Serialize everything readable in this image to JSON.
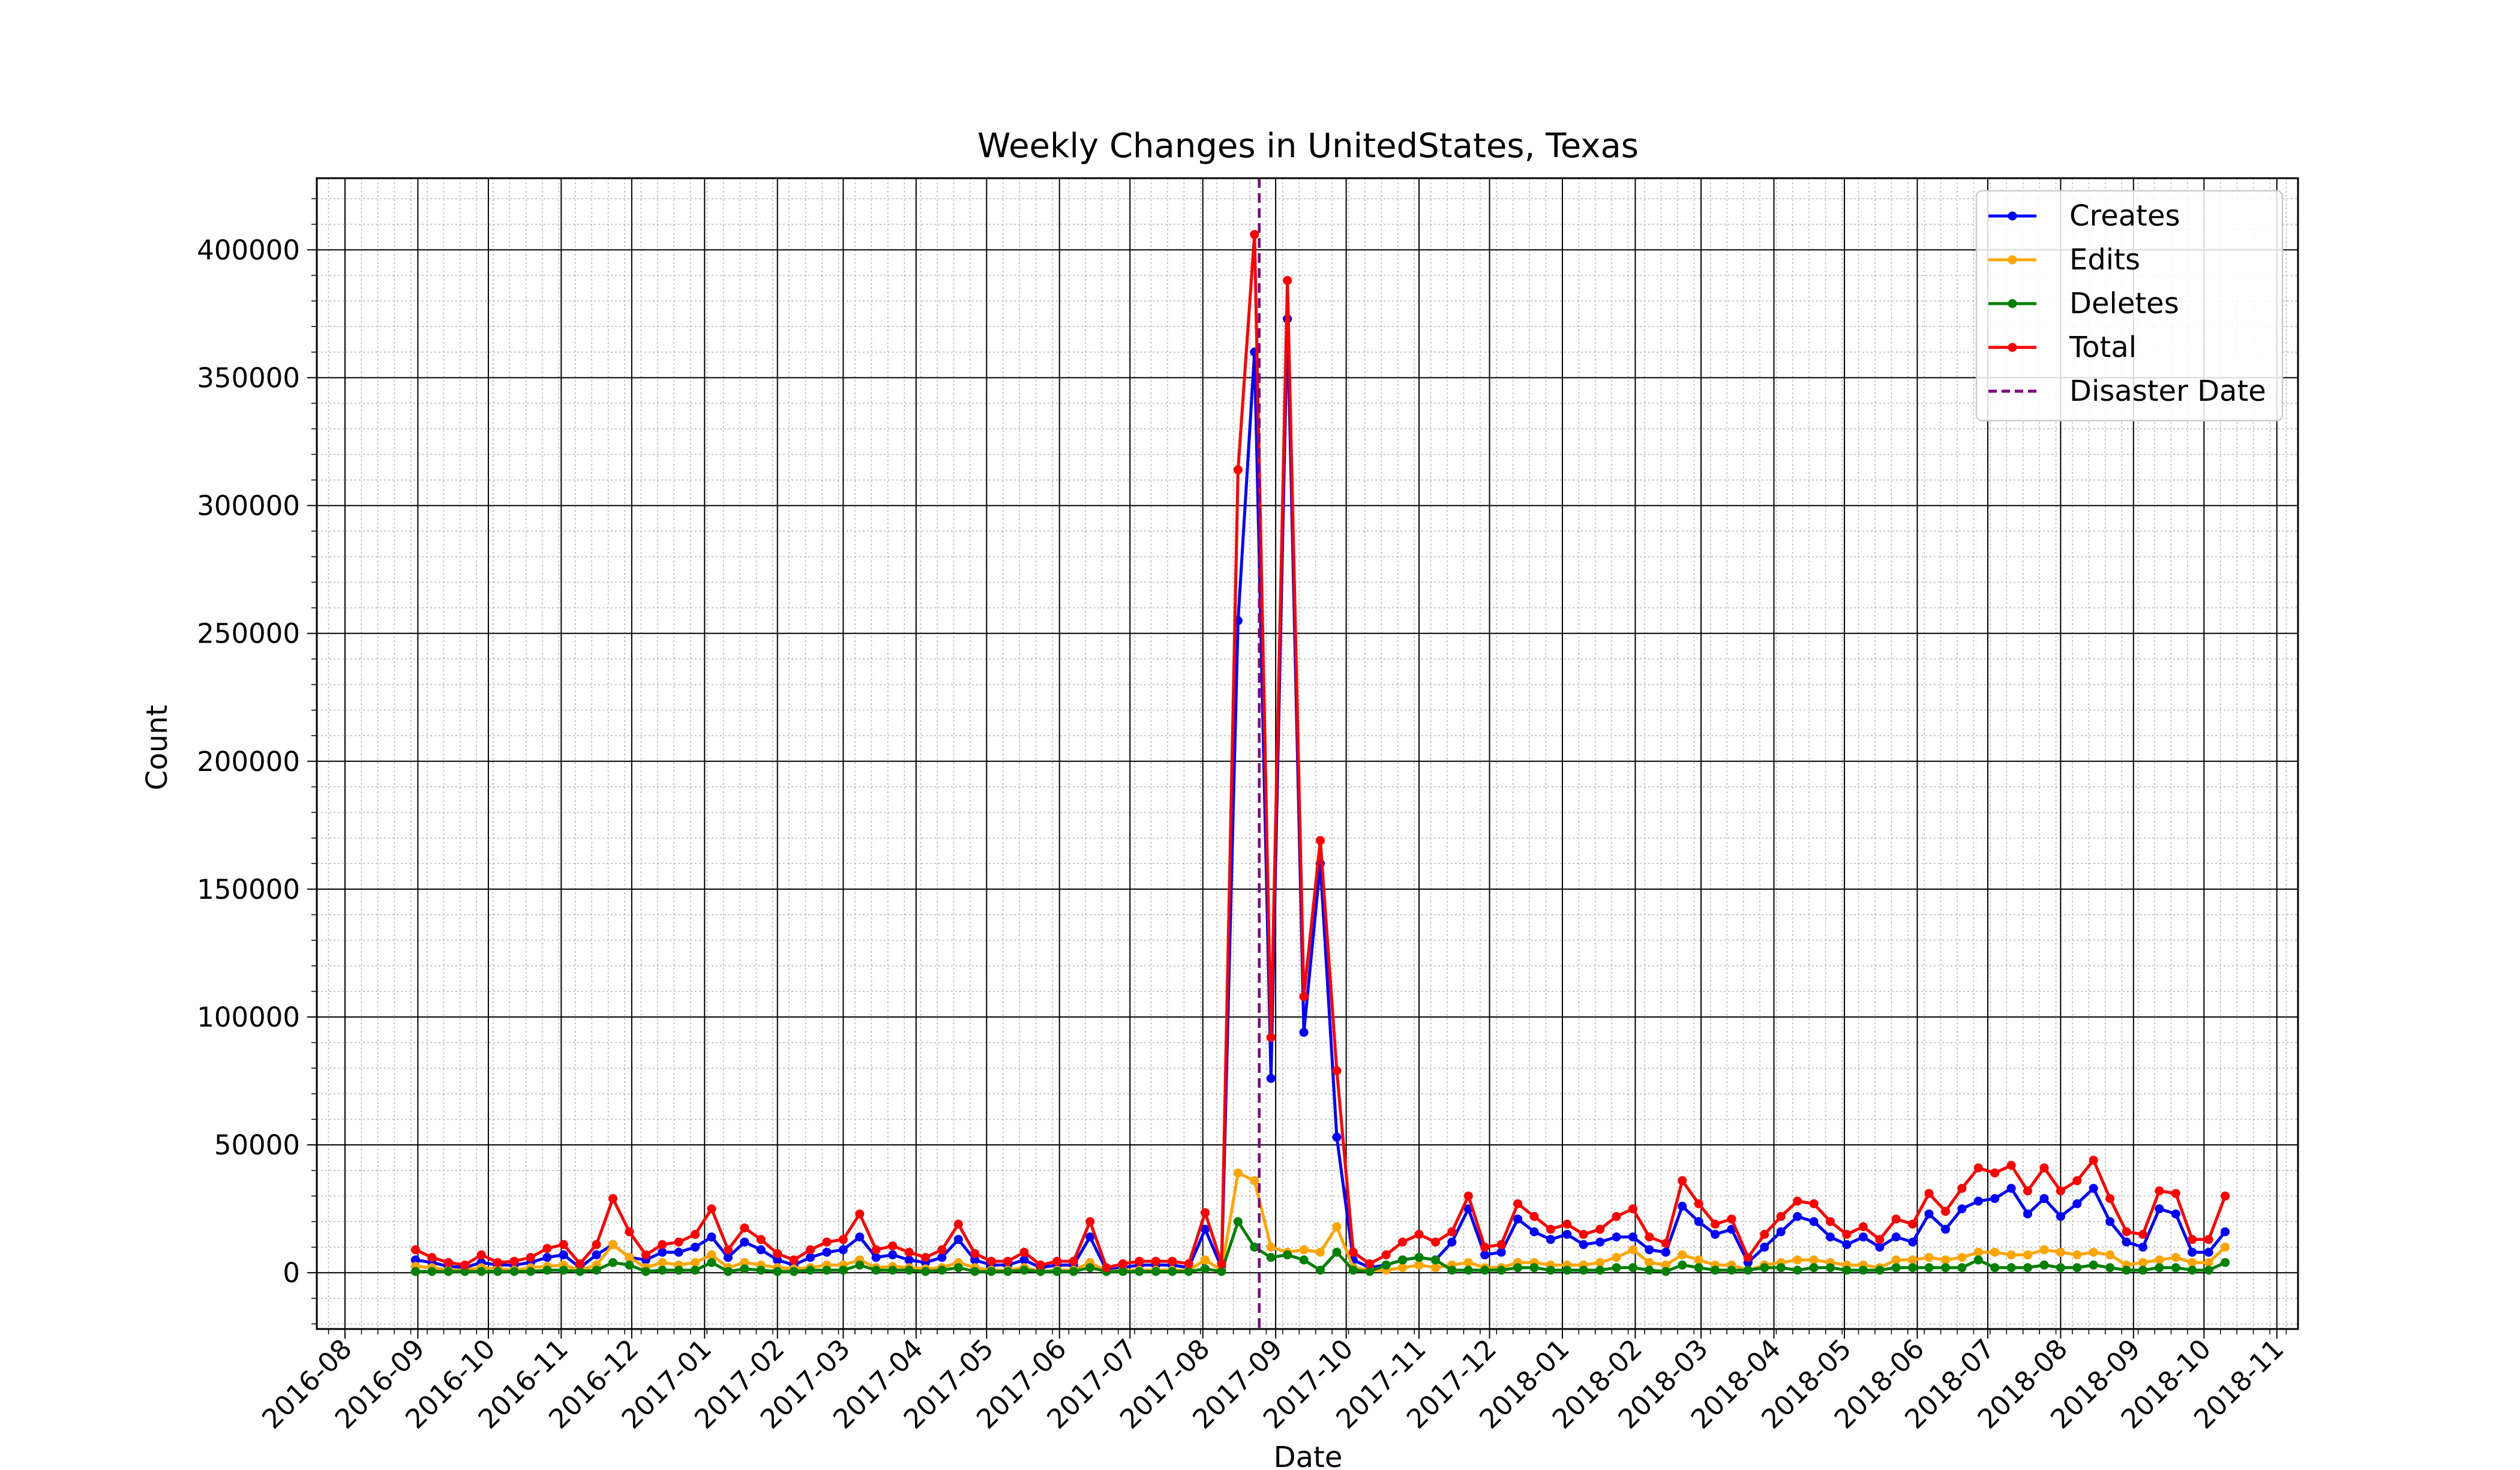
{
  "chart_data": {
    "type": "line",
    "title": "Weekly Changes in UnitedStates, Texas",
    "xlabel": "Date",
    "ylabel": "Count",
    "xlim": [
      "2016-07-20",
      "2018-11-10"
    ],
    "ylim": [
      -22000,
      428000
    ],
    "yticks": [
      0,
      50000,
      100000,
      150000,
      200000,
      250000,
      300000,
      350000,
      400000
    ],
    "xticks": [
      "2016-08",
      "2016-09",
      "2016-10",
      "2016-11",
      "2016-12",
      "2017-01",
      "2017-02",
      "2017-03",
      "2017-04",
      "2017-05",
      "2017-06",
      "2017-07",
      "2017-08",
      "2017-09",
      "2017-10",
      "2017-11",
      "2017-12",
      "2018-01",
      "2018-02",
      "2018-03",
      "2018-04",
      "2018-05",
      "2018-06",
      "2018-07",
      "2018-08",
      "2018-09",
      "2018-10",
      "2018-11"
    ],
    "grid": {
      "major": true,
      "minor": true
    },
    "legend_position": "top-right",
    "first_week": "2016-08-31",
    "series": [
      {
        "name": "Creates",
        "color": "#0000ff",
        "values": [
          5000,
          4000,
          2500,
          2000,
          4000,
          3000,
          3000,
          4000,
          6000,
          7000,
          2000,
          7000,
          11000,
          6000,
          5000,
          8000,
          8000,
          10000,
          14000,
          6000,
          12000,
          9000,
          5000,
          3000,
          6000,
          8000,
          9000,
          14000,
          6000,
          7000,
          5000,
          4000,
          6000,
          13000,
          5000,
          3000,
          3000,
          5000,
          2000,
          3000,
          3000,
          14000,
          1000,
          2000,
          3000,
          3000,
          3000,
          2000,
          17000,
          2000,
          255000,
          360000,
          76000,
          373000,
          94000,
          160000,
          53000,
          5000,
          2000,
          3000,
          5000,
          6000,
          5000,
          12000,
          25000,
          7000,
          8000,
          21000,
          16000,
          13000,
          15000,
          11000,
          12000,
          14000,
          14000,
          9000,
          8000,
          26000,
          20000,
          15000,
          17000,
          4000,
          10000,
          16000,
          22000,
          20000,
          14000,
          11000,
          14000,
          10000,
          14000,
          12000,
          23000,
          17000,
          25000,
          28000,
          29000,
          33000,
          23000,
          29000,
          22000,
          27000,
          33000,
          20000,
          12000,
          10000,
          25000,
          23000,
          8000,
          8000,
          16000
        ]
      },
      {
        "name": "Edits",
        "color": "#ffa500",
        "values": [
          2500,
          2000,
          1000,
          1000,
          2000,
          1500,
          1000,
          2000,
          2500,
          3000,
          1000,
          3000,
          11000,
          6000,
          2000,
          4000,
          3000,
          4000,
          7000,
          2000,
          4000,
          3000,
          2000,
          1500,
          2000,
          3000,
          3000,
          5000,
          2000,
          2500,
          2000,
          1500,
          2000,
          4000,
          2000,
          1000,
          1000,
          2000,
          500,
          1000,
          1000,
          4000,
          500,
          1000,
          1000,
          1000,
          1000,
          1000,
          5000,
          1000,
          39000,
          36000,
          10000,
          8000,
          9000,
          8000,
          18000,
          2000,
          1000,
          1000,
          2000,
          3000,
          2000,
          3000,
          4000,
          2000,
          2000,
          4000,
          4000,
          3000,
          3000,
          3000,
          4000,
          6000,
          9000,
          4000,
          3000,
          7000,
          5000,
          3000,
          3000,
          1000,
          3000,
          4000,
          5000,
          5000,
          4000,
          3000,
          3000,
          2000,
          5000,
          5000,
          6000,
          5000,
          6000,
          8000,
          8000,
          7000,
          7000,
          9000,
          8000,
          7000,
          8000,
          7000,
          3000,
          4000,
          5000,
          6000,
          4000,
          4000,
          10000
        ]
      },
      {
        "name": "Deletes",
        "color": "#008000",
        "values": [
          500,
          500,
          500,
          500,
          500,
          500,
          500,
          500,
          1000,
          1000,
          500,
          1000,
          4000,
          3000,
          500,
          1000,
          1000,
          1000,
          4000,
          500,
          1500,
          1000,
          500,
          500,
          1000,
          1000,
          1000,
          3000,
          1000,
          1000,
          1000,
          500,
          1000,
          2000,
          500,
          500,
          500,
          1000,
          500,
          500,
          500,
          2000,
          500,
          500,
          500,
          500,
          500,
          500,
          1500,
          500,
          20000,
          10000,
          6000,
          7000,
          5000,
          1000,
          8000,
          1000,
          500,
          3000,
          5000,
          6000,
          5000,
          1000,
          1000,
          1000,
          1000,
          2000,
          2000,
          1000,
          1000,
          1000,
          1000,
          2000,
          2000,
          1000,
          500,
          3000,
          2000,
          1000,
          1000,
          1000,
          2000,
          2000,
          1000,
          2000,
          2000,
          1000,
          1000,
          1000,
          2000,
          2000,
          2000,
          2000,
          2000,
          5000,
          2000,
          2000,
          2000,
          3000,
          2000,
          2000,
          3000,
          2000,
          1000,
          1000,
          2000,
          2000,
          1000,
          1000,
          4000
        ]
      },
      {
        "name": "Total",
        "color": "#ff0000",
        "values": [
          9000,
          6000,
          4000,
          3000,
          7000,
          4000,
          4500,
          6000,
          9500,
          11000,
          3500,
          11000,
          29000,
          16000,
          7000,
          11000,
          12000,
          15000,
          25000,
          9000,
          17500,
          13000,
          7500,
          5000,
          9000,
          12000,
          13000,
          23000,
          9000,
          10500,
          8000,
          6000,
          9000,
          19000,
          7500,
          4500,
          4500,
          8000,
          3000,
          4500,
          4500,
          20000,
          2000,
          3500,
          4500,
          4500,
          4500,
          3500,
          23500,
          3500,
          314000,
          406000,
          92000,
          388000,
          108000,
          169000,
          79000,
          8000,
          3500,
          7000,
          12000,
          15000,
          12000,
          16000,
          30000,
          10000,
          11000,
          27000,
          22000,
          17000,
          19000,
          15000,
          17000,
          22000,
          25000,
          14000,
          11500,
          36000,
          27000,
          19000,
          21000,
          6000,
          15000,
          22000,
          28000,
          27000,
          20000,
          15000,
          18000,
          13000,
          21000,
          19000,
          31000,
          24000,
          33000,
          41000,
          39000,
          42000,
          32000,
          41000,
          32000,
          36000,
          44000,
          29000,
          16000,
          15000,
          32000,
          31000,
          13000,
          13000,
          30000
        ]
      }
    ],
    "vlines": [
      {
        "name": "Disaster Date",
        "x": "2017-08-25",
        "color": "#800080",
        "style": "dashed"
      }
    ]
  }
}
